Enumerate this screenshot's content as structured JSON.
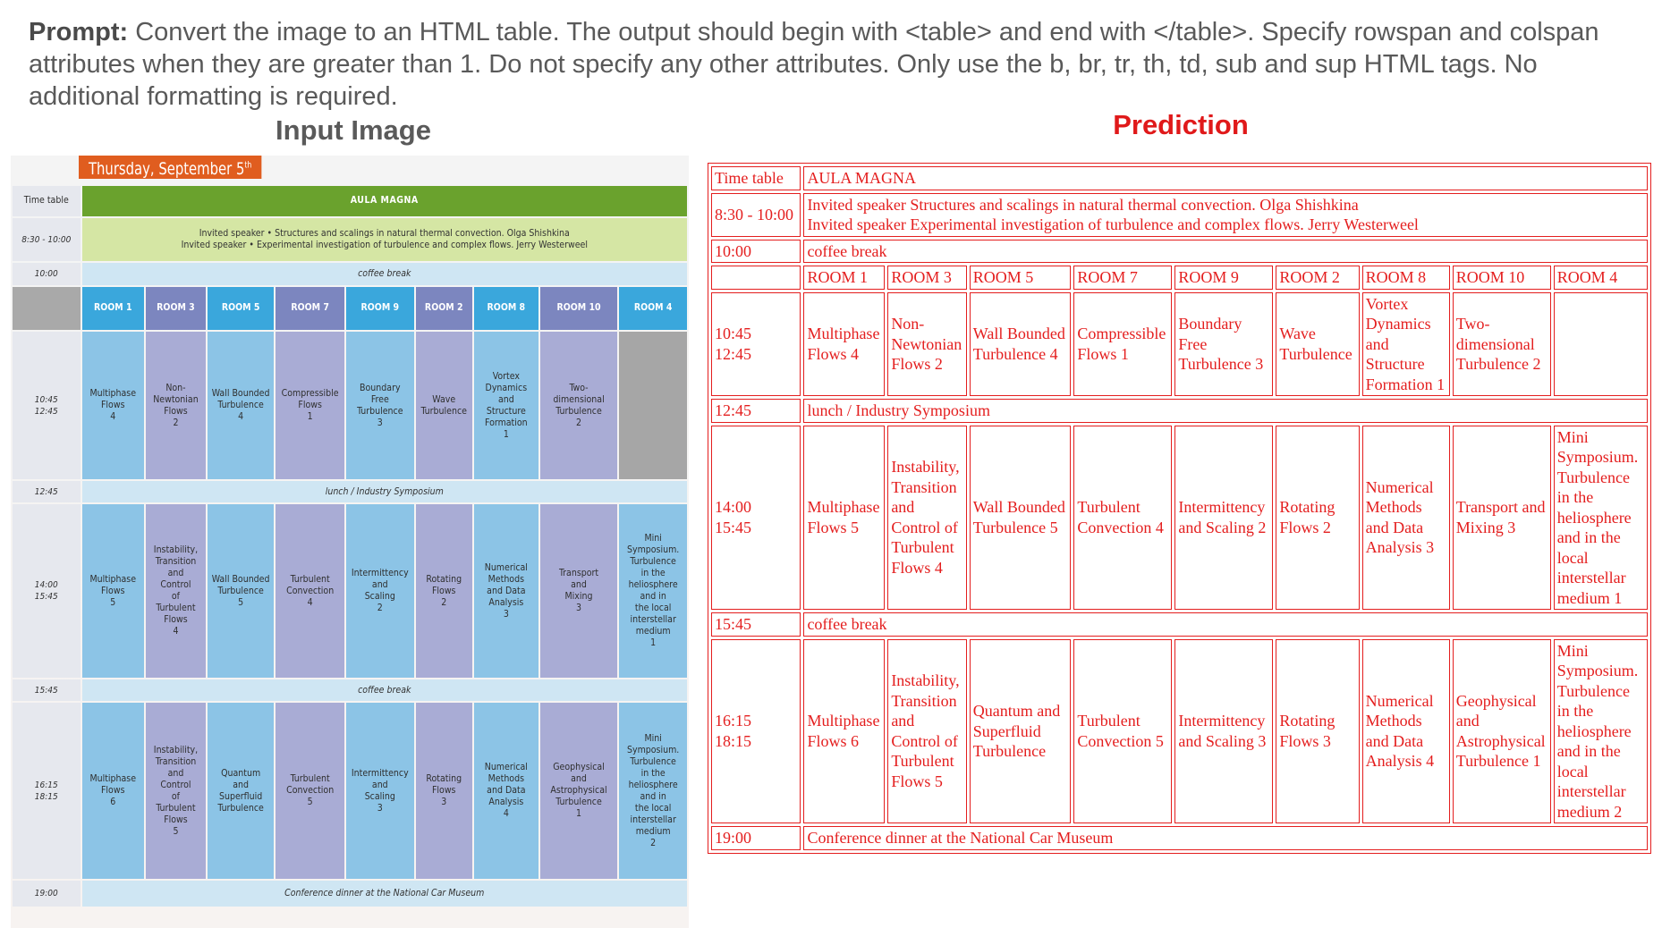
{
  "prompt": {
    "label": "Prompt:",
    "text": " Convert the image to an HTML table. The output should begin with <table> and end with </table>. Specify rowspan and colspan attributes when they are greater than 1. Do not specify any other attributes. Only use the b, br, tr, th, td, sub and sup HTML tags. No additional formatting is required."
  },
  "headings": {
    "input": "Input Image",
    "prediction": "Prediction"
  },
  "input_image": {
    "date_banner": "Thursday, September 5",
    "date_sup": "th",
    "time_table": "Time table",
    "aula_magna": "AULA MAGNA",
    "t_830": "8:30 - 10:00",
    "invited": "Invited speaker • Structures and scalings in natural thermal convection. Olga Shishkina\nInvited speaker • Experimental investigation of turbulence and complex flows. Jerry Westerweel",
    "t_1000": "10:00",
    "coffee1": "coffee break",
    "rooms": [
      "ROOM 1",
      "ROOM 3",
      "ROOM 5",
      "ROOM 7",
      "ROOM 9",
      "ROOM 2",
      "ROOM 8",
      "ROOM 10",
      "ROOM 4"
    ],
    "t_1045": "10:45\n12:45",
    "s1": [
      "Multiphase\nFlows\n4",
      "Non-\nNewtonian\nFlows\n2",
      "Wall Bounded\nTurbulence\n4",
      "Compressible\nFlows\n1",
      "Boundary\nFree\nTurbulence\n3",
      "Wave\nTurbulence",
      "Vortex\nDynamics\nand\nStructure\nFormation\n1",
      "Two-\ndimensional\nTurbulence\n2",
      ""
    ],
    "t_1245": "12:45",
    "lunch": "lunch / Industry Symposium",
    "t_1400": "14:00\n15:45",
    "s2": [
      "Multiphase\nFlows\n5",
      "Instability,\nTransition\nand\nControl\nof\nTurbulent\nFlows\n4",
      "Wall Bounded\nTurbulence\n5",
      "Turbulent\nConvection\n4",
      "Intermittency\nand\nScaling\n2",
      "Rotating\nFlows\n2",
      "Numerical\nMethods\nand Data\nAnalysis\n3",
      "Transport\nand\nMixing\n3",
      "Mini\nSymposium.\nTurbulence\nin the\nheliosphere\nand in\nthe local\ninterstellar\nmedium\n1"
    ],
    "t_1545": "15:45",
    "coffee2": "coffee break",
    "t_1615": "16:15\n18:15",
    "s3": [
      "Multiphase\nFlows\n6",
      "Instability,\nTransition\nand\nControl\nof\nTurbulent\nFlows\n5",
      "Quantum\nand\nSuperfluid\nTurbulence",
      "Turbulent\nConvection\n5",
      "Intermittency\nand\nScaling\n3",
      "Rotating\nFlows\n3",
      "Numerical\nMethods\nand Data\nAnalysis\n4",
      "Geophysical\nand\nAstrophysical\nTurbulence\n1",
      "Mini\nSymposium.\nTurbulence\nin the\nheliosphere\nand in\nthe local\ninterstellar\nmedium\n2"
    ],
    "t_1900": "19:00",
    "dinner": "Conference dinner at the National Car Museum"
  },
  "prediction": {
    "time_table": "Time table",
    "aula_magna": "AULA MAGNA",
    "t_830": "8:30 - 10:00",
    "invited": "Invited speaker Structures and scalings in natural thermal convection. Olga Shishkina\nInvited speaker Experimental investigation of turbulence and complex flows. Jerry Westerweel",
    "t_1000": "10:00",
    "coffee1": "coffee break",
    "rooms": [
      "ROOM 1",
      "ROOM 3",
      "ROOM 5",
      "ROOM 7",
      "ROOM 9",
      "ROOM 2",
      "ROOM 8",
      "ROOM 10",
      "ROOM 4"
    ],
    "t_1045": "10:45\n12:45",
    "s1": [
      "Multiphase Flows 4",
      "Non-Newtonian Flows 2",
      "Wall Bounded Turbulence 4",
      "Compressible Flows 1",
      "Boundary Free Turbulence 3",
      "Wave Turbulence",
      "Vortex Dynamics and Structure Formation 1",
      "Two-dimensional Turbulence 2",
      ""
    ],
    "t_1245": "12:45",
    "lunch": "lunch / Industry Symposium",
    "t_1400": "14:00\n15:45",
    "s2": [
      "Multiphase Flows 5",
      "Instability, Transition and Control of Turbulent Flows 4",
      "Wall Bounded Turbulence 5",
      "Turbulent Convection 4",
      "Intermittency and Scaling 2",
      "Rotating Flows 2",
      "Numerical Methods and Data Analysis 3",
      "Transport and Mixing 3",
      "Mini Symposium. Turbulence in the heliosphere and in the local interstellar medium 1"
    ],
    "t_1545": "15:45",
    "coffee2": "coffee break",
    "t_1615": "16:15\n18:15",
    "s3": [
      "Multiphase Flows 6",
      "Instability, Transition and Control of Turbulent Flows 5",
      "Quantum and Superfluid Turbulence",
      "Turbulent Convection 5",
      "Intermittency and Scaling 3",
      "Rotating Flows 3",
      "Numerical Methods and Data Analysis 4",
      "Geophysical and Astrophysical Turbulence 1",
      "Mini Symposium. Turbulence in the heliosphere and in the local interstellar medium 2"
    ],
    "t_1900": "19:00",
    "dinner": "Conference dinner at the National Car Museum"
  },
  "colors": {
    "prediction_red": "#e41e1e",
    "banner_orange": "#e05d1f",
    "aula_green": "#6aa22d",
    "room_blue": "#3aa7dc",
    "room_purple": "#7c86bf"
  }
}
